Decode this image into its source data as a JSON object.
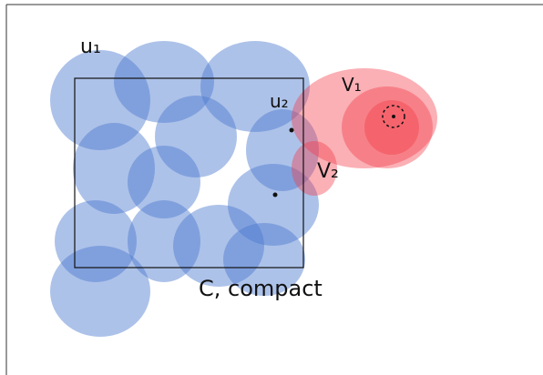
{
  "labels": {
    "u1": "u₁",
    "u2": "u₂",
    "v1": "V₁",
    "v2": "V₂",
    "compact": "C, compact"
  }
}
